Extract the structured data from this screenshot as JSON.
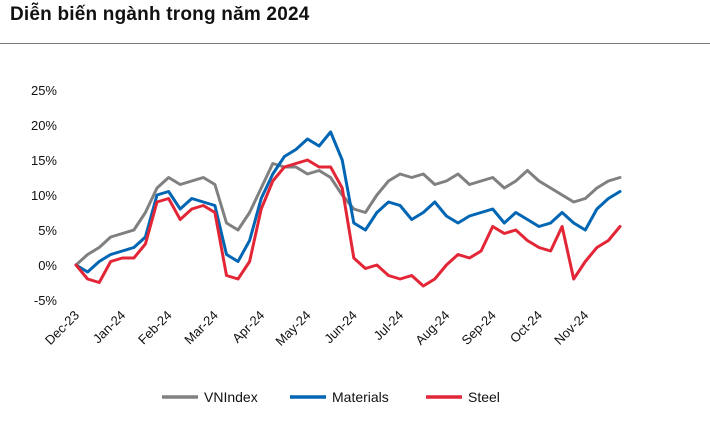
{
  "title": "Diễn biến ngành trong năm 2024",
  "chart_data": {
    "type": "line",
    "title": "Diễn biến ngành trong năm 2024",
    "xlabel": "",
    "ylabel": "",
    "x_ticks": [
      "Dec-23",
      "Jan-24",
      "Feb-24",
      "Mar-24",
      "Apr-24",
      "May-24",
      "Jun-24",
      "Jul-24",
      "Aug-24",
      "Sep-24",
      "Oct-24",
      "Nov-24"
    ],
    "y_ticks": [
      "25%",
      "20%",
      "15%",
      "10%",
      "5%",
      "0%",
      "-5%"
    ],
    "ylim": [
      -5,
      25
    ],
    "grid": false,
    "legend_position": "bottom",
    "x_month_index": [
      0,
      0.25,
      0.5,
      0.75,
      1,
      1.25,
      1.5,
      1.75,
      2,
      2.25,
      2.5,
      2.75,
      3,
      3.25,
      3.5,
      3.75,
      4,
      4.25,
      4.5,
      4.75,
      5,
      5.25,
      5.5,
      5.75,
      6,
      6.25,
      6.5,
      6.75,
      7,
      7.25,
      7.5,
      7.75,
      8,
      8.25,
      8.5,
      8.75,
      9,
      9.25,
      9.5,
      9.75,
      10,
      10.25,
      10.5,
      10.75,
      11,
      11.25,
      11.5,
      11.75
    ],
    "series": [
      {
        "name": "VNIndex",
        "color": "#808080",
        "values": [
          0,
          1.5,
          2.5,
          4,
          4.5,
          5,
          7.5,
          11,
          12.5,
          11.5,
          12,
          12.5,
          11.5,
          6,
          5,
          7.5,
          11,
          14.5,
          14,
          14,
          13,
          13.5,
          12.5,
          10,
          8,
          7.5,
          10,
          12,
          13,
          12.5,
          13,
          11.5,
          12,
          13,
          11.5,
          12,
          12.5,
          11,
          12,
          13.5,
          12,
          11,
          10,
          9,
          9.5,
          11,
          12,
          12.5
        ]
      },
      {
        "name": "Materials",
        "color": "#0066B3",
        "values": [
          0,
          -1,
          0.5,
          1.5,
          2,
          2.5,
          4,
          10,
          10.5,
          8,
          9.5,
          9,
          8.5,
          1.5,
          0.5,
          3.5,
          9.5,
          13,
          15.5,
          16.5,
          18,
          17,
          19,
          15,
          6,
          5,
          7.5,
          9,
          8.5,
          6.5,
          7.5,
          9,
          7,
          6,
          7,
          7.5,
          8,
          6,
          7.5,
          6.5,
          5.5,
          6,
          7.5,
          6,
          5,
          8,
          9.5,
          10.5
        ]
      },
      {
        "name": "Steel",
        "color": "#E32636",
        "values": [
          0,
          -2,
          -2.5,
          0.5,
          1,
          1,
          3,
          9,
          9.5,
          6.5,
          8,
          8.5,
          7.5,
          -1.5,
          -2,
          0.5,
          8,
          12,
          14,
          14.5,
          15,
          14,
          14,
          11,
          1,
          -0.5,
          0,
          -1.5,
          -2,
          -1.5,
          -3,
          -2,
          0,
          1.5,
          1,
          2,
          5.5,
          4.5,
          5,
          3.5,
          2.5,
          2,
          5.5,
          -2,
          0.5,
          2.5,
          3.5,
          5.5
        ]
      }
    ]
  }
}
